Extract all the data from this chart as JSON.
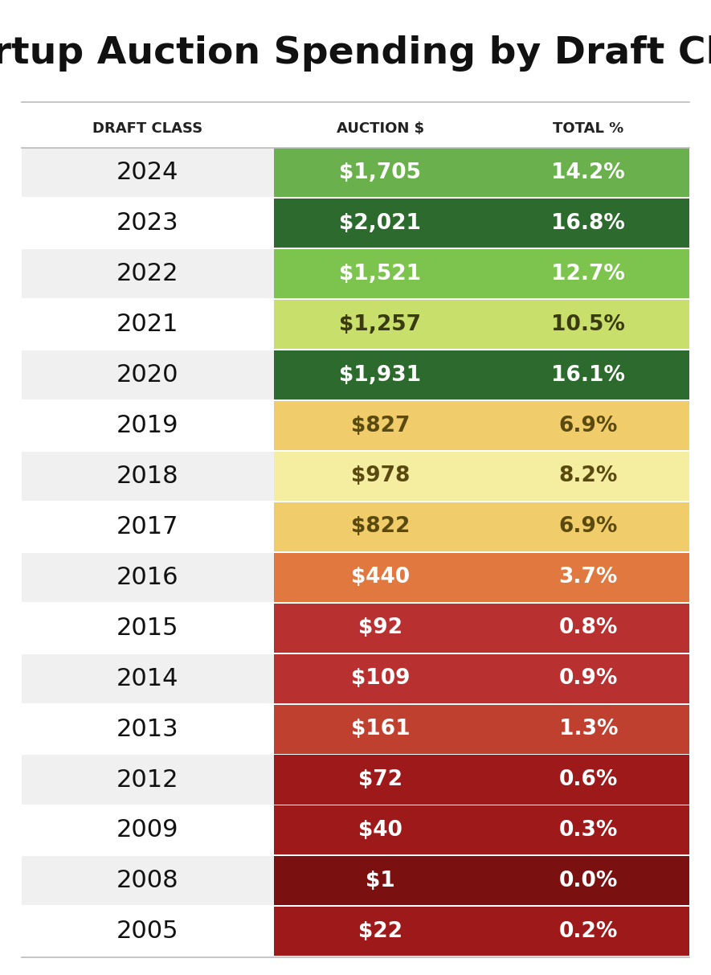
{
  "title": "Startup Auction Spending by Draft Class",
  "col_headers": [
    "DRAFT CLASS",
    "AUCTION $",
    "TOTAL %"
  ],
  "rows": [
    {
      "year": "2024",
      "auction": "$1,705",
      "total": "14.2%",
      "color": "#6ab04c",
      "text_color": "#ffffff"
    },
    {
      "year": "2023",
      "auction": "$2,021",
      "total": "16.8%",
      "color": "#2d6a2d",
      "text_color": "#ffffff"
    },
    {
      "year": "2022",
      "auction": "$1,521",
      "total": "12.7%",
      "color": "#7dc44e",
      "text_color": "#ffffff"
    },
    {
      "year": "2021",
      "auction": "$1,257",
      "total": "10.5%",
      "color": "#c8e06b",
      "text_color": "#3a3a10"
    },
    {
      "year": "2020",
      "auction": "$1,931",
      "total": "16.1%",
      "color": "#2d6a2d",
      "text_color": "#ffffff"
    },
    {
      "year": "2019",
      "auction": "$827",
      "total": "6.9%",
      "color": "#f0cc6a",
      "text_color": "#5a4a10"
    },
    {
      "year": "2018",
      "auction": "$978",
      "total": "8.2%",
      "color": "#f5eda0",
      "text_color": "#5a4a10"
    },
    {
      "year": "2017",
      "auction": "$822",
      "total": "6.9%",
      "color": "#f0cc6a",
      "text_color": "#5a4a10"
    },
    {
      "year": "2016",
      "auction": "$440",
      "total": "3.7%",
      "color": "#e07840",
      "text_color": "#ffffff"
    },
    {
      "year": "2015",
      "auction": "$92",
      "total": "0.8%",
      "color": "#b83030",
      "text_color": "#ffffff"
    },
    {
      "year": "2014",
      "auction": "$109",
      "total": "0.9%",
      "color": "#b83030",
      "text_color": "#ffffff"
    },
    {
      "year": "2013",
      "auction": "$161",
      "total": "1.3%",
      "color": "#c04030",
      "text_color": "#ffffff"
    },
    {
      "year": "2012",
      "auction": "$72",
      "total": "0.6%",
      "color": "#9e1a1a",
      "text_color": "#ffffff"
    },
    {
      "year": "2009",
      "auction": "$40",
      "total": "0.3%",
      "color": "#9e1a1a",
      "text_color": "#ffffff"
    },
    {
      "year": "2008",
      "auction": "$1",
      "total": "0.0%",
      "color": "#7a1010",
      "text_color": "#ffffff"
    },
    {
      "year": "2005",
      "auction": "$22",
      "total": "0.2%",
      "color": "#9e1a1a",
      "text_color": "#ffffff"
    }
  ],
  "background_color": "#ffffff",
  "title_fontsize": 34,
  "header_fontsize": 13,
  "row_fontsize": 19,
  "year_fontsize": 22,
  "fig_width": 8.85,
  "fig_height": 12.13
}
